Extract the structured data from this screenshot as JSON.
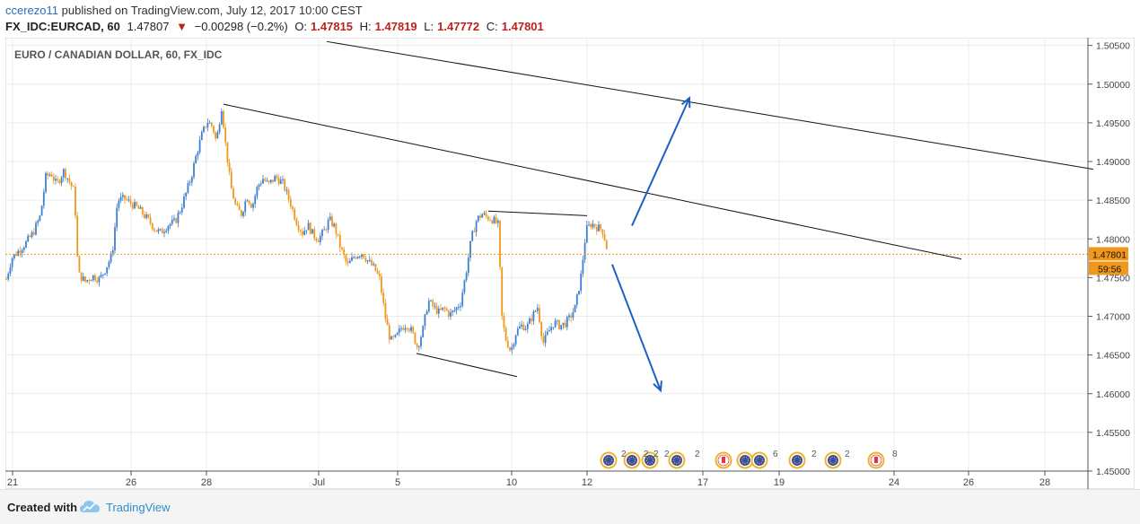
{
  "header": {
    "author": "ccerezo11",
    "published": "published on TradingView.com, July 12, 2017 10:00 CEST",
    "symbol": "FX_IDC:EURCAD, 60",
    "last": "1.47807",
    "change_arrow": "▼",
    "change": "−0.00298 (−0.2%)",
    "o_label": "O:",
    "o_value": "1.47815",
    "h_label": "H:",
    "h_value": "1.47819",
    "l_label": "L:",
    "l_value": "1.47772",
    "c_label": "C:",
    "c_value": "1.47801"
  },
  "footer": {
    "created_with": "Created with",
    "brand": "TradingView"
  },
  "colors": {
    "up": "#3f7fcf",
    "down": "#f0971c",
    "price_line": "#f0971c",
    "arrow": "#1f5fc4",
    "trendline": "#111111",
    "grid": "#ececec"
  },
  "chart_data": {
    "type": "candlestick",
    "title": "EURO / CANADIAN DOLLAR, 60, FX_IDC",
    "ylim": [
      1.45,
      1.506
    ],
    "y_ticks": [
      "1.50500",
      "1.50000",
      "1.49500",
      "1.49000",
      "1.48500",
      "1.48000",
      "1.47500",
      "1.47000",
      "1.46500",
      "1.46000",
      "1.45500",
      "1.45000"
    ],
    "x_ticks": [
      "21",
      "26",
      "28",
      "Jul",
      "5",
      "10",
      "12",
      "17",
      "19",
      "24",
      "26",
      "28"
    ],
    "last_price_label": "1.47801",
    "countdown_label": "59:56",
    "last_price": 1.47801,
    "path_points": [
      [
        0,
        1.4748
      ],
      [
        6,
        1.4775
      ],
      [
        14,
        1.4785
      ],
      [
        22,
        1.4795
      ],
      [
        30,
        1.4808
      ],
      [
        38,
        1.483
      ],
      [
        44,
        1.488
      ],
      [
        50,
        1.4885
      ],
      [
        56,
        1.487
      ],
      [
        64,
        1.4888
      ],
      [
        70,
        1.4875
      ],
      [
        76,
        1.486
      ],
      [
        80,
        1.4755
      ],
      [
        88,
        1.4745
      ],
      [
        96,
        1.4752
      ],
      [
        104,
        1.4748
      ],
      [
        110,
        1.476
      ],
      [
        118,
        1.478
      ],
      [
        124,
        1.485
      ],
      [
        132,
        1.4852
      ],
      [
        140,
        1.4845
      ],
      [
        148,
        1.4838
      ],
      [
        154,
        1.483
      ],
      [
        160,
        1.4822
      ],
      [
        166,
        1.4812
      ],
      [
        172,
        1.4808
      ],
      [
        180,
        1.4818
      ],
      [
        188,
        1.4822
      ],
      [
        194,
        1.4838
      ],
      [
        200,
        1.4858
      ],
      [
        206,
        1.488
      ],
      [
        212,
        1.491
      ],
      [
        218,
        1.4935
      ],
      [
        224,
        1.4952
      ],
      [
        230,
        1.4945
      ],
      [
        234,
        1.4925
      ],
      [
        240,
        1.4972
      ],
      [
        244,
        1.4925
      ],
      [
        250,
        1.4868
      ],
      [
        256,
        1.484
      ],
      [
        262,
        1.4832
      ],
      [
        268,
        1.4855
      ],
      [
        274,
        1.4842
      ],
      [
        280,
        1.4868
      ],
      [
        286,
        1.4878
      ],
      [
        292,
        1.487
      ],
      [
        300,
        1.488
      ],
      [
        308,
        1.4872
      ],
      [
        316,
        1.4848
      ],
      [
        324,
        1.482
      ],
      [
        330,
        1.4808
      ],
      [
        336,
        1.4818
      ],
      [
        342,
        1.4805
      ],
      [
        348,
        1.48
      ],
      [
        354,
        1.481
      ],
      [
        360,
        1.4825
      ],
      [
        366,
        1.4815
      ],
      [
        372,
        1.479
      ],
      [
        380,
        1.4765
      ],
      [
        388,
        1.4778
      ],
      [
        396,
        1.4782
      ],
      [
        404,
        1.477
      ],
      [
        410,
        1.4762
      ],
      [
        416,
        1.4748
      ],
      [
        422,
        1.47
      ],
      [
        428,
        1.4668
      ],
      [
        434,
        1.4672
      ],
      [
        440,
        1.4685
      ],
      [
        446,
        1.469
      ],
      [
        452,
        1.468
      ],
      [
        458,
        1.466
      ],
      [
        464,
        1.4682
      ],
      [
        470,
        1.472
      ],
      [
        476,
        1.4712
      ],
      [
        482,
        1.4705
      ],
      [
        488,
        1.471
      ],
      [
        494,
        1.4702
      ],
      [
        500,
        1.4708
      ],
      [
        506,
        1.4718
      ],
      [
        512,
        1.4755
      ],
      [
        518,
        1.48
      ],
      [
        524,
        1.4825
      ],
      [
        530,
        1.4832
      ],
      [
        536,
        1.4828
      ],
      [
        542,
        1.4825
      ],
      [
        548,
        1.4818
      ],
      [
        552,
        1.47
      ],
      [
        556,
        1.4672
      ],
      [
        562,
        1.4655
      ],
      [
        568,
        1.468
      ],
      [
        574,
        1.4688
      ],
      [
        580,
        1.4686
      ],
      [
        586,
        1.47
      ],
      [
        592,
        1.4712
      ],
      [
        598,
        1.4665
      ],
      [
        604,
        1.468
      ],
      [
        610,
        1.4692
      ],
      [
        616,
        1.4688
      ],
      [
        622,
        1.469
      ],
      [
        628,
        1.4698
      ],
      [
        634,
        1.4712
      ],
      [
        640,
        1.475
      ],
      [
        646,
        1.4812
      ],
      [
        652,
        1.482
      ],
      [
        658,
        1.4815
      ],
      [
        664,
        1.4812
      ],
      [
        668,
        1.4795
      ],
      [
        670,
        1.478
      ]
    ],
    "trendlines": [
      {
        "x1": 243,
        "y1": 1.4974,
        "x2": 1065,
        "y2": 1.4774
      },
      {
        "x1": 358,
        "y1": 1.5055,
        "x2": 1212,
        "y2": 1.489
      },
      {
        "x1": 538,
        "y1": 1.4836,
        "x2": 648,
        "y2": 1.483
      },
      {
        "x1": 458,
        "y1": 1.4652,
        "x2": 570,
        "y2": 1.4622
      }
    ],
    "arrows": [
      {
        "x1": 698,
        "y1": 1.4817,
        "x2": 762,
        "y2": 1.4982
      },
      {
        "x1": 676,
        "y1": 1.4767,
        "x2": 730,
        "y2": 1.4604
      }
    ],
    "event_badges": [
      "2",
      "2",
      "2",
      "2",
      "2",
      "6",
      "2",
      "2",
      "8"
    ]
  }
}
